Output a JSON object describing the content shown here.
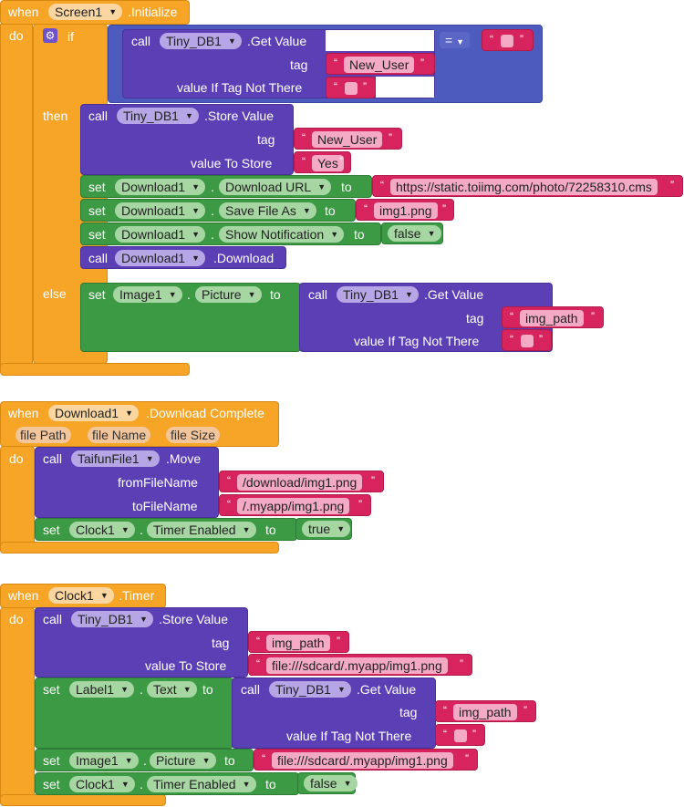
{
  "b1": {
    "when": "when",
    "component": "Screen1",
    "event": ".Initialize",
    "do": "do",
    "if": "if",
    "then": "then",
    "else": "else",
    "cond_call": "call",
    "cond_comp": "Tiny_DB1",
    "cond_method": ".Get Value",
    "tag_label": "tag",
    "cond_tag": "New_User",
    "value_if_label": "value If Tag Not There",
    "eq_op": "=",
    "store_call": "call",
    "store_comp": "Tiny_DB1",
    "store_method": ".Store Value",
    "store_tag_label": "tag",
    "store_tag": "New_User",
    "store_value_label": "value To Store",
    "store_value": "Yes",
    "set1": {
      "set": "set",
      "comp": "Download1",
      "prop": "Download URL",
      "to": "to",
      "value": "https://static.toiimg.com/photo/72258310.cms"
    },
    "set2": {
      "set": "set",
      "comp": "Download1",
      "prop": "Save File As",
      "to": "to",
      "value": "img1.png"
    },
    "set3": {
      "set": "set",
      "comp": "Download1",
      "prop": "Show Notification",
      "to": "to",
      "value": "false"
    },
    "dl_call": "call",
    "dl_comp": "Download1",
    "dl_method": ".Download",
    "else_set": "set",
    "else_comp": "Image1",
    "else_prop": "Picture",
    "else_to": "to",
    "else_call": "call",
    "else_call_comp": "Tiny_DB1",
    "else_call_method": ".Get Value",
    "else_tag_label": "tag",
    "else_tag": "img_path",
    "else_value_label": "value If Tag Not There"
  },
  "b2": {
    "when": "when",
    "component": "Download1",
    "event": ".Download Complete",
    "params": [
      "file Path",
      "file Name",
      "file Size"
    ],
    "do": "do",
    "call": "call",
    "call_comp": "TaifunFile1",
    "call_method": ".Move",
    "from_label": "fromFileName",
    "from_value": "/download/img1.png",
    "to_label": "toFileName",
    "to_value": "/.myapp/img1.png",
    "set": "set",
    "set_comp": "Clock1",
    "set_prop": "Timer Enabled",
    "set_to": "to",
    "set_value": "true"
  },
  "b3": {
    "when": "when",
    "component": "Clock1",
    "event": ".Timer",
    "do": "do",
    "store_call": "call",
    "store_comp": "Tiny_DB1",
    "store_method": ".Store Value",
    "tag_label": "tag",
    "tag_value": "img_path",
    "value_label": "value To Store",
    "value_value": "file:///sdcard/.myapp/img1.png",
    "set1": {
      "set": "set",
      "comp": "Label1",
      "prop": "Text",
      "to": "to"
    },
    "get_call": "call",
    "get_comp": "Tiny_DB1",
    "get_method": ".Get Value",
    "get_tag_label": "tag",
    "get_tag": "img_path",
    "get_value_label": "value If Tag Not There",
    "set2": {
      "set": "set",
      "comp": "Image1",
      "prop": "Picture",
      "to": "to",
      "value": "file:///sdcard/.myapp/img1.png"
    },
    "set3": {
      "set": "set",
      "comp": "Clock1",
      "prop": "Timer Enabled",
      "to": "to",
      "value": "false"
    }
  }
}
